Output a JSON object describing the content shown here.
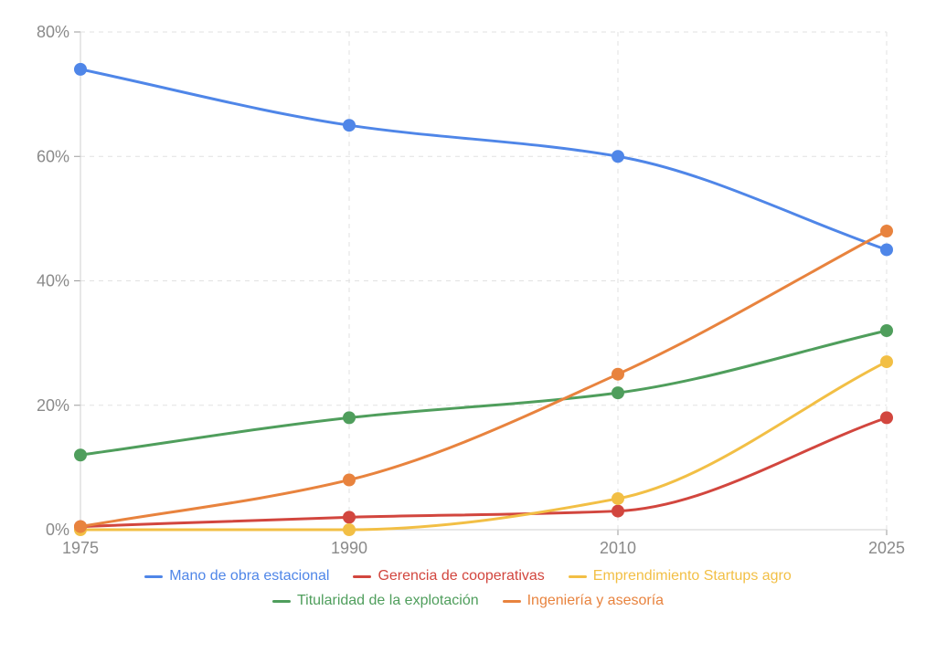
{
  "chart_data": {
    "type": "line",
    "title": "",
    "xlabel": "",
    "ylabel": "",
    "x": [
      "1975",
      "1990",
      "2010",
      "2025"
    ],
    "ylim": [
      0,
      80
    ],
    "yticks": [
      "0%",
      "20%",
      "40%",
      "60%",
      "80%"
    ],
    "ytick_values": [
      0,
      20,
      40,
      60,
      80
    ],
    "grid": true,
    "legend_position": "bottom",
    "series": [
      {
        "name": "Mano de obra estacional",
        "color": "#4f86e8",
        "values": [
          74,
          65,
          60,
          45
        ]
      },
      {
        "name": "Gerencia de cooperativas",
        "color": "#d2463e",
        "values": [
          0.5,
          2,
          3,
          18
        ]
      },
      {
        "name": "Emprendimiento Startups agro",
        "color": "#f2bf45",
        "values": [
          0,
          0,
          5,
          27
        ]
      },
      {
        "name": "Titularidad de la explotación",
        "color": "#4f9e5c",
        "values": [
          12,
          18,
          22,
          32
        ]
      },
      {
        "name": "Ingeniería y asesoría",
        "color": "#e8833e",
        "values": [
          0.5,
          8,
          25,
          48
        ]
      }
    ]
  }
}
